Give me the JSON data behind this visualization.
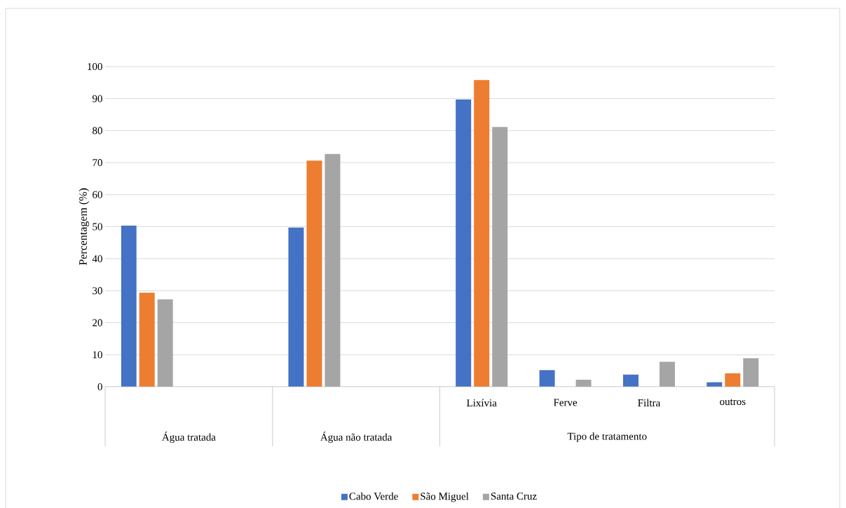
{
  "chart_data": {
    "type": "bar",
    "ylabel": "Percentagem (%)",
    "categories": [
      null,
      null,
      null,
      null,
      "Lixívia",
      "Ferve",
      "Filtra",
      "outros"
    ],
    "annotations": [
      "Água tratada",
      "Água não tratada",
      "Tipo de tratamento"
    ],
    "series": [
      {
        "name": "Cabo Verde",
        "color": "#4472c4",
        "values": [
          50.3,
          null,
          49.7,
          null,
          89.7,
          5.2,
          3.8,
          1.4
        ]
      },
      {
        "name": "São Miguel",
        "color": "#ed7d31",
        "values": [
          29.4,
          null,
          70.6,
          null,
          95.8,
          null,
          null,
          4.2
        ]
      },
      {
        "name": "Santa Cruz",
        "color": "#a5a5a5",
        "values": [
          27.3,
          null,
          72.7,
          null,
          81.1,
          2.2,
          7.8,
          8.9
        ]
      }
    ],
    "ylim": [
      0,
      100
    ],
    "yticks": [
      0,
      10,
      20,
      30,
      40,
      50,
      60,
      70,
      80,
      90,
      100
    ],
    "grid": "y",
    "legend": "bottom"
  }
}
